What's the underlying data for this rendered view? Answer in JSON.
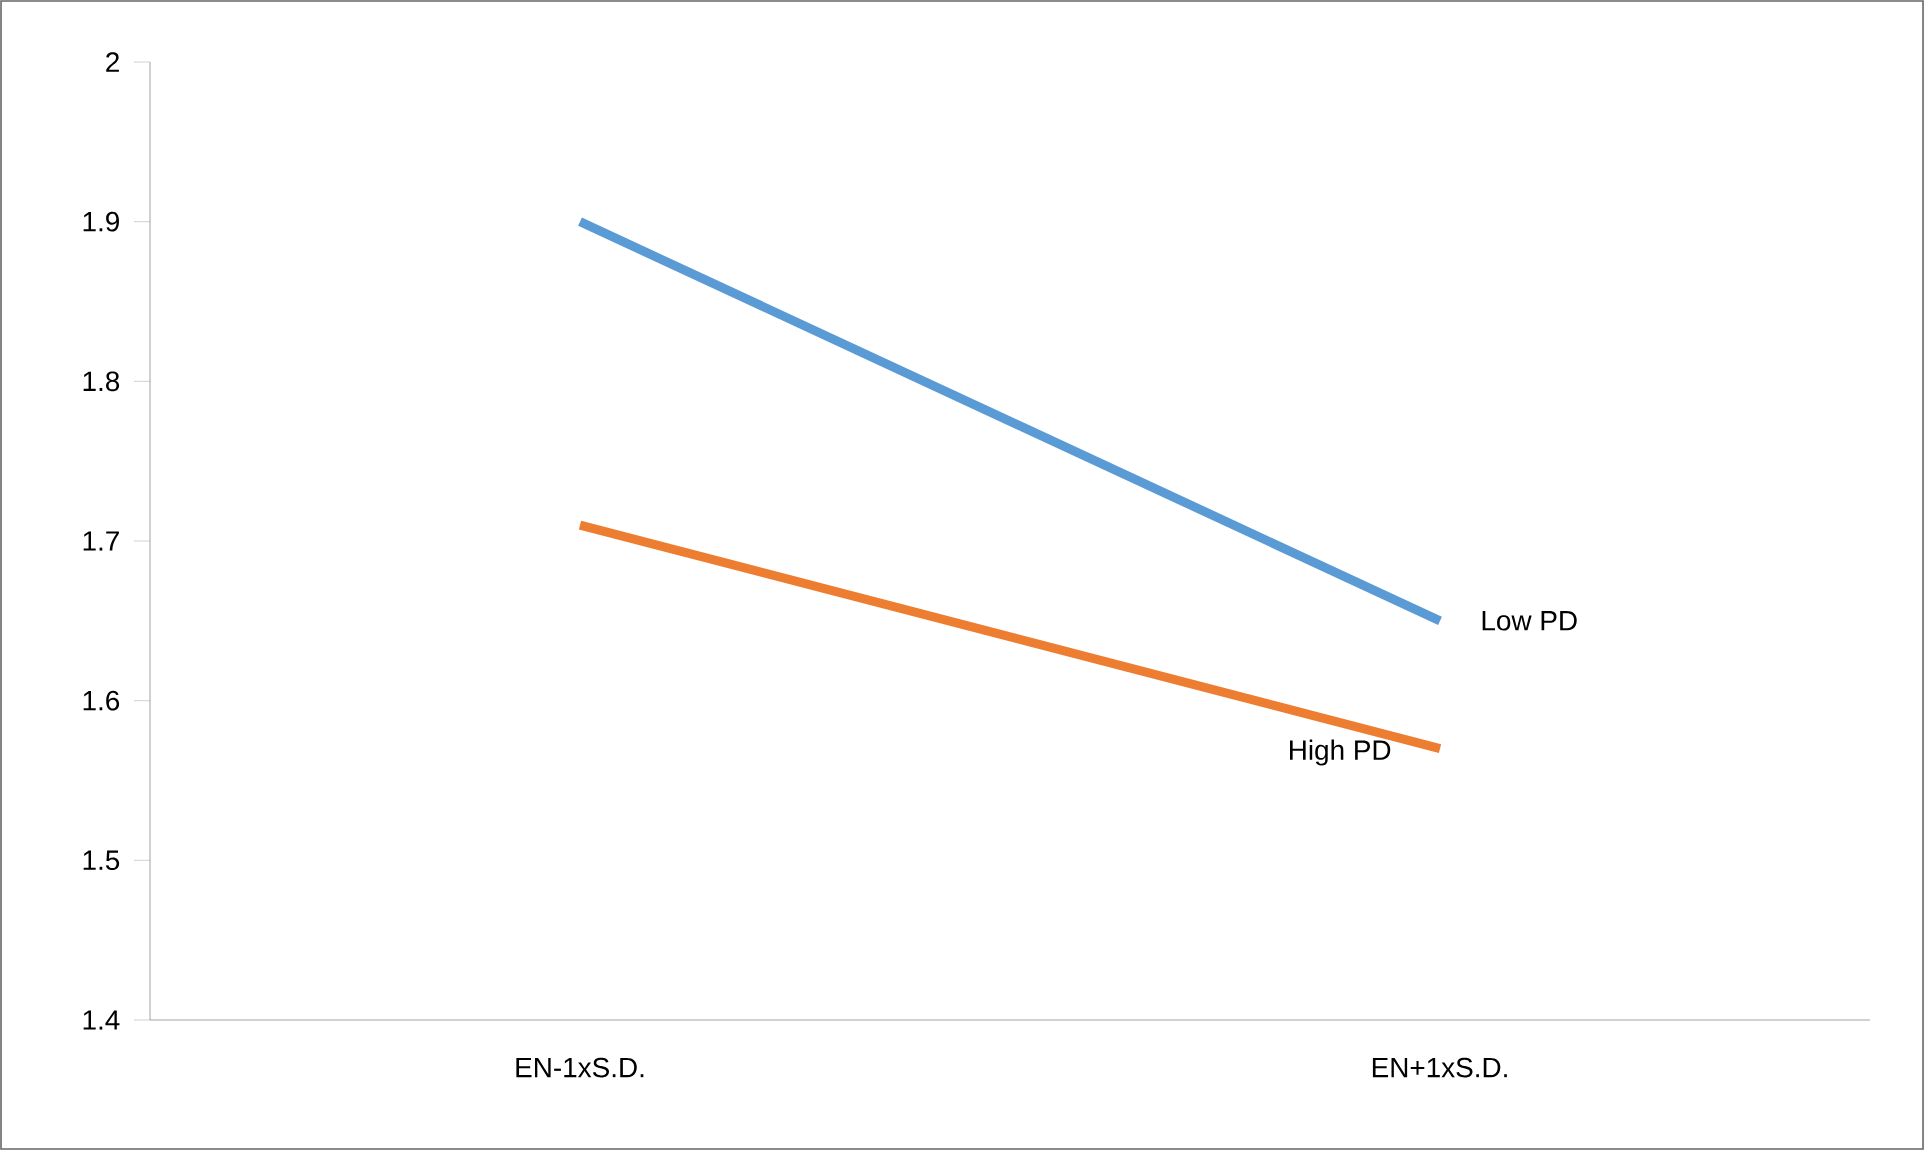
{
  "chart_data": {
    "type": "line",
    "categories": [
      "EN-1xS.D.",
      "EN+1xS.D."
    ],
    "series": [
      {
        "name": "Low PD",
        "color": "#5b9bd5",
        "values": [
          1.9,
          1.65
        ]
      },
      {
        "name": "High PD",
        "color": "#ed7d31",
        "values": [
          1.71,
          1.57
        ]
      }
    ],
    "ylim": [
      1.4,
      2
    ],
    "yticks": [
      1.4,
      1.5,
      1.6,
      1.7,
      1.8,
      1.9,
      2
    ],
    "grid": false,
    "legend": false,
    "marker": "none",
    "line_style": "solid"
  }
}
